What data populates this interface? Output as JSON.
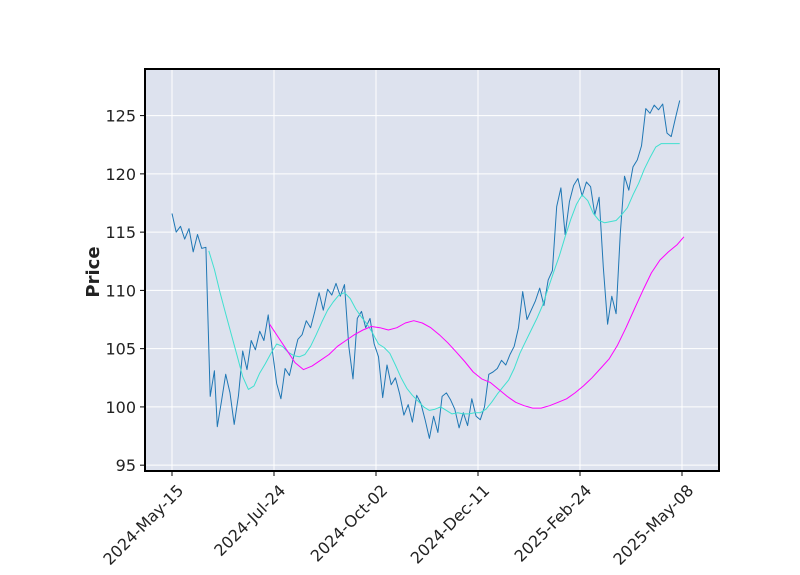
{
  "chart_data": {
    "type": "line",
    "title": "",
    "xlabel": "",
    "ylabel": "Price",
    "x_tick_labels": [
      "2024-May-15",
      "2024-Jul-24",
      "2024-Oct-02",
      "2024-Dec-11",
      "2025-Feb-24",
      "2025-May-08"
    ],
    "y_ticks": [
      95,
      100,
      105,
      110,
      115,
      120,
      125
    ],
    "ylim": [
      94.5,
      129
    ],
    "grid": true,
    "legend": "none",
    "colors": {
      "background": "#dde2ee",
      "grid": "#ffffff",
      "price": "#1f77b4",
      "ma_short": "#40e0d0",
      "ma_long": "#ff00ff",
      "frame": "#000000"
    },
    "series": [
      {
        "key": "price",
        "x": [
          0,
          3,
          6,
          9,
          12,
          15,
          18,
          21,
          24,
          27,
          30,
          32,
          35,
          38,
          41,
          44,
          47,
          50,
          53,
          56,
          59,
          62,
          65,
          68,
          71,
          74,
          77,
          80,
          83,
          86,
          89,
          92,
          95,
          98,
          101,
          104,
          107,
          110,
          113,
          116,
          119,
          122,
          125,
          128,
          131,
          134,
          137,
          140,
          143,
          146,
          149,
          152,
          155,
          158,
          161,
          164,
          167,
          170,
          173,
          176,
          179,
          182,
          185,
          188,
          191,
          194,
          197,
          200,
          203,
          206,
          209,
          212,
          215,
          218,
          221,
          224,
          227,
          230,
          233,
          236,
          239,
          242,
          245,
          248,
          251,
          254,
          257,
          260,
          263,
          266,
          269,
          272,
          275,
          278,
          281,
          284,
          287,
          290,
          293,
          296,
          299,
          302,
          305,
          308,
          311,
          314,
          317,
          320,
          323,
          326,
          329,
          332,
          335,
          338,
          341,
          344,
          347,
          350,
          353,
          356,
          359
        ],
        "values": [
          116.6,
          115.0,
          115.5,
          114.4,
          115.3,
          113.3,
          114.8,
          113.6,
          113.7,
          100.9,
          103.1,
          98.3,
          100.5,
          102.8,
          101.2,
          98.5,
          101.0,
          104.8,
          103.2,
          105.7,
          104.9,
          106.5,
          105.7,
          107.9,
          104.8,
          102.0,
          100.7,
          103.3,
          102.7,
          104.3,
          105.8,
          106.2,
          107.4,
          106.8,
          108.2,
          109.8,
          108.3,
          110.1,
          109.6,
          110.6,
          109.5,
          110.5,
          105.2,
          102.4,
          107.6,
          108.2,
          106.8,
          107.6,
          105.4,
          104.3,
          100.8,
          103.6,
          101.9,
          102.5,
          101.1,
          99.3,
          100.2,
          98.7,
          101.0,
          100.3,
          98.9,
          97.3,
          99.2,
          97.8,
          100.9,
          101.2,
          100.6,
          99.8,
          98.2,
          99.5,
          98.4,
          100.7,
          99.2,
          98.9,
          100.0,
          102.8,
          103.0,
          103.3,
          104.0,
          103.6,
          104.5,
          105.2,
          106.8,
          109.9,
          107.5,
          108.3,
          109.1,
          110.2,
          108.7,
          110.9,
          111.7,
          117.2,
          118.8,
          114.8,
          117.6,
          119.0,
          119.6,
          118.1,
          119.3,
          118.9,
          116.5,
          118.0,
          112.0,
          107.1,
          109.5,
          108.0,
          114.9,
          119.8,
          118.6,
          120.6,
          121.2,
          122.4,
          125.6,
          125.2,
          125.9,
          125.5,
          126.0,
          123.5,
          123.2,
          124.8,
          126.3
        ],
        "line_width": 1
      },
      {
        "key": "ma_short",
        "x": [
          26,
          30,
          34,
          38,
          42,
          46,
          50,
          54,
          58,
          62,
          66,
          70,
          74,
          78,
          82,
          86,
          90,
          94,
          98,
          102,
          106,
          110,
          114,
          118,
          122,
          126,
          130,
          134,
          138,
          142,
          146,
          150,
          154,
          158,
          162,
          166,
          170,
          174,
          178,
          182,
          186,
          190,
          194,
          198,
          202,
          206,
          210,
          214,
          218,
          222,
          226,
          230,
          234,
          238,
          242,
          246,
          250,
          254,
          258,
          262,
          266,
          270,
          274,
          278,
          282,
          286,
          290,
          294,
          298,
          302,
          306,
          310,
          314,
          318,
          322,
          326,
          330,
          334,
          338,
          342,
          346,
          350,
          354,
          359
        ],
        "values": [
          113.4,
          111.8,
          109.8,
          108.0,
          106.2,
          104.4,
          102.6,
          101.5,
          101.8,
          102.9,
          103.7,
          104.6,
          105.4,
          105.2,
          104.7,
          104.4,
          104.3,
          104.5,
          105.2,
          106.2,
          107.3,
          108.3,
          109.0,
          109.6,
          109.8,
          109.3,
          108.4,
          107.7,
          107.1,
          106.3,
          105.4,
          105.1,
          104.6,
          103.6,
          102.5,
          101.6,
          101.0,
          100.5,
          100.0,
          99.7,
          99.8,
          100.0,
          99.7,
          99.4,
          99.5,
          99.4,
          99.4,
          99.5,
          99.5,
          99.8,
          100.4,
          101.1,
          101.7,
          102.3,
          103.3,
          104.6,
          105.6,
          106.6,
          107.6,
          108.7,
          110.2,
          111.6,
          113.0,
          114.6,
          116.1,
          117.4,
          118.2,
          117.7,
          116.6,
          116.0,
          115.8,
          115.9,
          116.0,
          116.5,
          117.1,
          118.2,
          119.2,
          120.4,
          121.4,
          122.3,
          122.6,
          122.6,
          122.6,
          122.6
        ],
        "line_width": 1
      },
      {
        "key": "ma_long",
        "x": [
          69,
          75,
          81,
          87,
          93,
          99,
          105,
          111,
          117,
          123,
          129,
          135,
          141,
          147,
          153,
          159,
          165,
          171,
          177,
          183,
          189,
          195,
          201,
          207,
          213,
          219,
          225,
          231,
          237,
          243,
          249,
          255,
          261,
          267,
          273,
          279,
          285,
          291,
          297,
          303,
          309,
          315,
          321,
          327,
          333,
          339,
          345,
          351,
          357,
          362
        ],
        "values": [
          107.1,
          106.0,
          104.9,
          103.8,
          103.2,
          103.5,
          104.0,
          104.5,
          105.2,
          105.7,
          106.2,
          106.6,
          106.9,
          106.8,
          106.6,
          106.8,
          107.2,
          107.4,
          107.2,
          106.8,
          106.2,
          105.5,
          104.7,
          103.9,
          103.0,
          102.4,
          102.1,
          101.5,
          100.9,
          100.4,
          100.1,
          99.9,
          99.9,
          100.1,
          100.4,
          100.7,
          101.2,
          101.8,
          102.5,
          103.3,
          104.1,
          105.3,
          106.8,
          108.4,
          110.0,
          111.5,
          112.6,
          113.3,
          113.9,
          114.6
        ],
        "line_width": 1
      }
    ]
  }
}
